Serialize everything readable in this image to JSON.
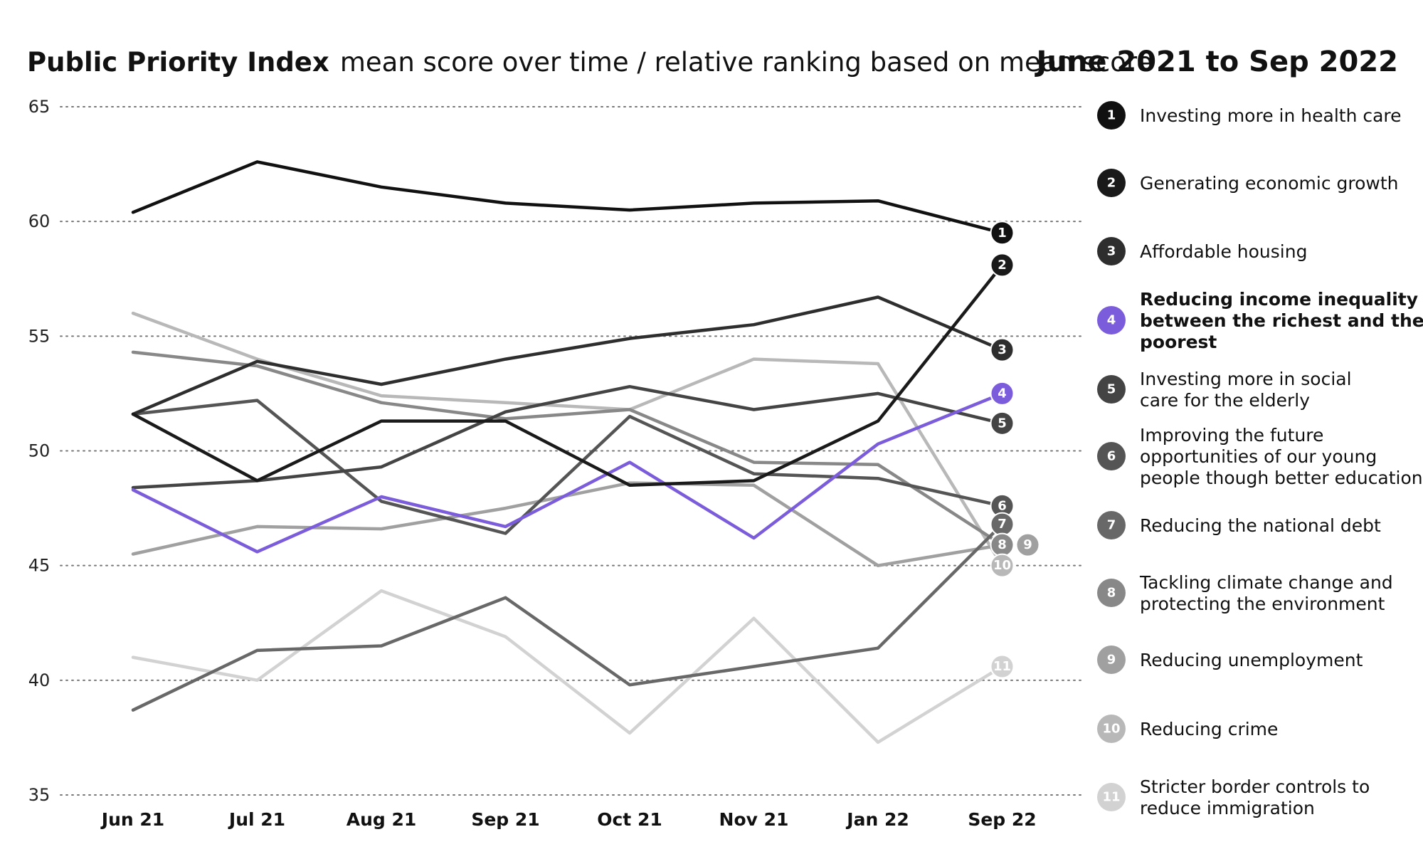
{
  "header": {
    "title_bold": "Public Priority Index",
    "title_rest": "mean score over time / relative ranking based on mean score",
    "period": "June 2021 to Sep 2022"
  },
  "chart_data": {
    "type": "line",
    "title": "Public Priority Index",
    "subtitle": "mean score over time / relative ranking based on mean score",
    "period": "June 2021 to Sep 2022",
    "xlabel": "",
    "ylabel": "",
    "ylim": [
      35,
      65
    ],
    "yticks": [
      65,
      60,
      55,
      50,
      45,
      40,
      35
    ],
    "grid": true,
    "legend_placement": "right",
    "categories": [
      "Jun 21",
      "Jul 21",
      "Aug 21",
      "Sep 21",
      "Oct 21",
      "Nov 21",
      "Jan 22",
      "Sep 22"
    ],
    "series": [
      {
        "rank": "1",
        "name": "Investing more in health care",
        "color": "#111111",
        "highlight": false,
        "values": [
          60.4,
          62.6,
          61.5,
          60.8,
          60.5,
          60.8,
          60.9,
          59.5
        ]
      },
      {
        "rank": "2",
        "name": "Generating economic growth",
        "color": "#1a1a1a",
        "highlight": false,
        "values": [
          51.6,
          48.7,
          51.3,
          51.3,
          48.5,
          48.7,
          51.3,
          58.1
        ]
      },
      {
        "rank": "3",
        "name": "Affordable housing",
        "color": "#2e2e2e",
        "highlight": false,
        "values": [
          51.6,
          53.9,
          52.9,
          54.0,
          54.9,
          55.5,
          56.7,
          54.4
        ]
      },
      {
        "rank": "4",
        "name": "Reducing income inequality between the richest and the poorest",
        "color": "#7b5cdb",
        "highlight": true,
        "values": [
          48.3,
          45.6,
          48.0,
          46.7,
          49.5,
          46.2,
          50.3,
          52.5
        ]
      },
      {
        "rank": "5",
        "name": "Investing more in social care for the elderly",
        "color": "#444444",
        "highlight": false,
        "values": [
          48.4,
          48.7,
          49.3,
          51.7,
          52.8,
          51.8,
          52.5,
          51.2
        ]
      },
      {
        "rank": "6",
        "name": "Improving the future opportunities of our young people though better education",
        "color": "#555555",
        "highlight": false,
        "values": [
          51.6,
          52.2,
          47.8,
          46.4,
          51.5,
          49.0,
          48.8,
          47.6
        ]
      },
      {
        "rank": "7",
        "name": "Reducing the national debt",
        "color": "#686868",
        "highlight": false,
        "values": [
          38.7,
          41.3,
          41.5,
          43.6,
          39.8,
          40.6,
          41.4,
          46.8
        ]
      },
      {
        "rank": "8",
        "name": "Tackling climate change and protecting the environment",
        "color": "#888888",
        "highlight": false,
        "values": [
          54.3,
          53.7,
          52.1,
          51.4,
          51.8,
          49.5,
          49.4,
          45.9
        ]
      },
      {
        "rank": "9",
        "name": "Reducing unemployment",
        "color": "#a0a0a0",
        "highlight": false,
        "values": [
          45.5,
          46.7,
          46.6,
          47.5,
          48.6,
          48.5,
          45.0,
          45.9
        ]
      },
      {
        "rank": "10",
        "name": "Reducing crime",
        "color": "#b8b8b8",
        "highlight": false,
        "values": [
          56.0,
          54.0,
          52.4,
          52.1,
          51.8,
          54.0,
          53.8,
          45.0
        ]
      },
      {
        "rank": "11",
        "name": "Stricter border controls to reduce immigration",
        "color": "#d2d2d2",
        "highlight": false,
        "values": [
          41.0,
          40.0,
          43.9,
          41.9,
          37.7,
          42.7,
          37.3,
          40.6
        ]
      }
    ]
  },
  "legend": [
    {
      "num": "1",
      "lines": [
        "Investing more in health care"
      ]
    },
    {
      "num": "2",
      "lines": [
        "Generating economic growth"
      ]
    },
    {
      "num": "3",
      "lines": [
        "Affordable housing"
      ]
    },
    {
      "num": "4",
      "lines": [
        "Reducing income inequality",
        "between the richest and the",
        "poorest"
      ]
    },
    {
      "num": "5",
      "lines": [
        "Investing more in social",
        "care for the elderly"
      ]
    },
    {
      "num": "6",
      "lines": [
        "Improving the future",
        "opportunities of our young",
        "people though better education"
      ]
    },
    {
      "num": "7",
      "lines": [
        "Reducing the national debt"
      ]
    },
    {
      "num": "8",
      "lines": [
        "Tackling climate change and",
        "protecting the environment"
      ]
    },
    {
      "num": "9",
      "lines": [
        "Reducing unemployment"
      ]
    },
    {
      "num": "10",
      "lines": [
        "Reducing crime"
      ]
    },
    {
      "num": "11",
      "lines": [
        "Stricter border controls to",
        "reduce immigration"
      ]
    }
  ]
}
